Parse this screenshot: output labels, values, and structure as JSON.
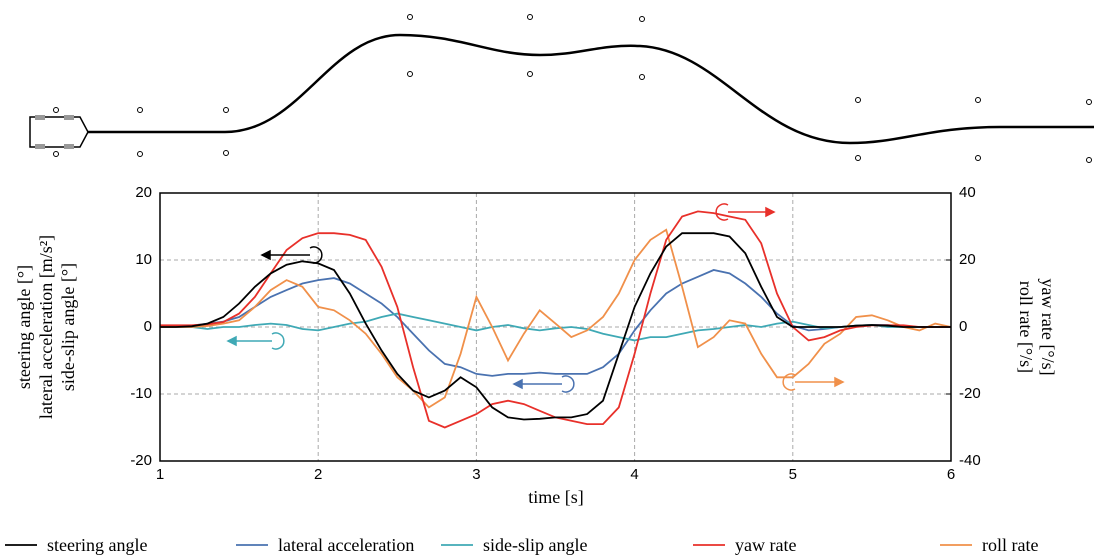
{
  "chart_data": {
    "type": "line",
    "xlabel": "time [s]",
    "ylabel": [
      "steering angle [°]",
      "lateral acceleration [m/s²]",
      "side-slip angle [°]"
    ],
    "y2label": [
      "yaw rate [°/s]",
      "roll rate [°/s]"
    ],
    "x": [
      1.0,
      1.1,
      1.2,
      1.3,
      1.4,
      1.5,
      1.6,
      1.7,
      1.8,
      1.9,
      2.0,
      2.1,
      2.2,
      2.3,
      2.4,
      2.5,
      2.6,
      2.7,
      2.8,
      2.9,
      3.0,
      3.1,
      3.2,
      3.3,
      3.4,
      3.5,
      3.6,
      3.7,
      3.8,
      3.9,
      4.0,
      4.1,
      4.2,
      4.3,
      4.4,
      4.5,
      4.6,
      4.7,
      4.8,
      4.9,
      5.0,
      5.1,
      5.2,
      5.3,
      5.4,
      5.5,
      5.6,
      5.7,
      5.8,
      5.9,
      6.0
    ],
    "xlim": [
      1,
      6
    ],
    "xticks": [
      1,
      2,
      3,
      4,
      5,
      6
    ],
    "ylim": [
      -20,
      20
    ],
    "yticks": [
      -20,
      -10,
      0,
      10,
      20
    ],
    "y2lim": [
      -40,
      40
    ],
    "y2ticks": [
      -40,
      -20,
      0,
      20,
      40
    ],
    "grid": true,
    "series": [
      {
        "name": "steering angle",
        "color": "#000000",
        "values": [
          0,
          0,
          0.1,
          0.5,
          1.5,
          3.5,
          6,
          8,
          9.3,
          9.8,
          9.5,
          8.5,
          5,
          0.5,
          -3.5,
          -7,
          -9.5,
          -10.5,
          -9.5,
          -7.5,
          -9,
          -12,
          -13.5,
          -13.8,
          -13.7,
          -13.5,
          -13.5,
          -13,
          -11,
          -4,
          3,
          8,
          12,
          14,
          14,
          14,
          13.5,
          11,
          6,
          1.5,
          0,
          0,
          0,
          0,
          0.2,
          0.3,
          0.2,
          0,
          0,
          0,
          0
        ]
      },
      {
        "name": "lateral acceleration",
        "color": "#4a72b0",
        "values": [
          0,
          0.1,
          0.2,
          0.5,
          0.8,
          1.5,
          3,
          4.5,
          5.5,
          6.5,
          7,
          7.3,
          6.5,
          5,
          3.5,
          1.5,
          -1,
          -3.5,
          -5.5,
          -6,
          -7,
          -7.3,
          -7,
          -7,
          -6.8,
          -7,
          -7,
          -7,
          -6,
          -4,
          -0.5,
          2.5,
          5,
          6.5,
          7.5,
          8.5,
          8,
          6.5,
          4.5,
          2,
          0.2,
          -0.5,
          -0.3,
          0,
          0.2,
          0.3,
          0.3,
          0.1,
          0,
          0,
          0
        ]
      },
      {
        "name": "side-slip angle",
        "color": "#3fa9b5",
        "values": [
          0,
          0,
          0,
          -0.3,
          0,
          0,
          0.3,
          0.5,
          0.3,
          -0.3,
          -0.5,
          0,
          0.5,
          0.8,
          1.5,
          2,
          1.5,
          1,
          0.5,
          0,
          -0.5,
          0,
          0.3,
          -0.2,
          -0.5,
          -0.2,
          0,
          -0.3,
          -1,
          -1.5,
          -2,
          -1.5,
          -1.5,
          -1,
          -0.5,
          -0.3,
          0,
          0.3,
          0,
          0.5,
          0.8,
          0.3,
          -0.2,
          0,
          0.2,
          0.3,
          0,
          0,
          0,
          0,
          0
        ]
      },
      {
        "name": "yaw rate",
        "color": "#e8302a",
        "axis": "y2",
        "values": [
          0.5,
          0.5,
          0.5,
          0.8,
          1.5,
          4,
          9,
          16,
          23,
          26.5,
          28,
          28,
          27.5,
          26,
          18,
          6,
          -12,
          -28,
          -30,
          -28,
          -26,
          -23,
          -22,
          -23,
          -25,
          -27,
          -28,
          -29,
          -29,
          -24,
          -8,
          10,
          26,
          33,
          34.5,
          34,
          33,
          32,
          25,
          10,
          0,
          -4,
          -3,
          -1,
          0,
          0.5,
          0.5,
          0.5,
          0,
          0,
          0
        ]
      },
      {
        "name": "roll rate",
        "color": "#f0904a",
        "axis": "y2",
        "values": [
          0,
          0,
          0,
          0.3,
          1,
          2,
          6,
          11,
          14,
          12,
          6,
          5,
          2,
          -2,
          -8,
          -15,
          -19,
          -24,
          -21,
          -8,
          9,
          0,
          -10,
          -2,
          5,
          1,
          -3,
          -1,
          3,
          10,
          20,
          26,
          29,
          12,
          -6,
          -3,
          2,
          1,
          -8,
          -15,
          -15,
          -11,
          -5,
          -2,
          3,
          3.5,
          2,
          0,
          -1,
          1,
          0
        ]
      }
    ]
  }
}
